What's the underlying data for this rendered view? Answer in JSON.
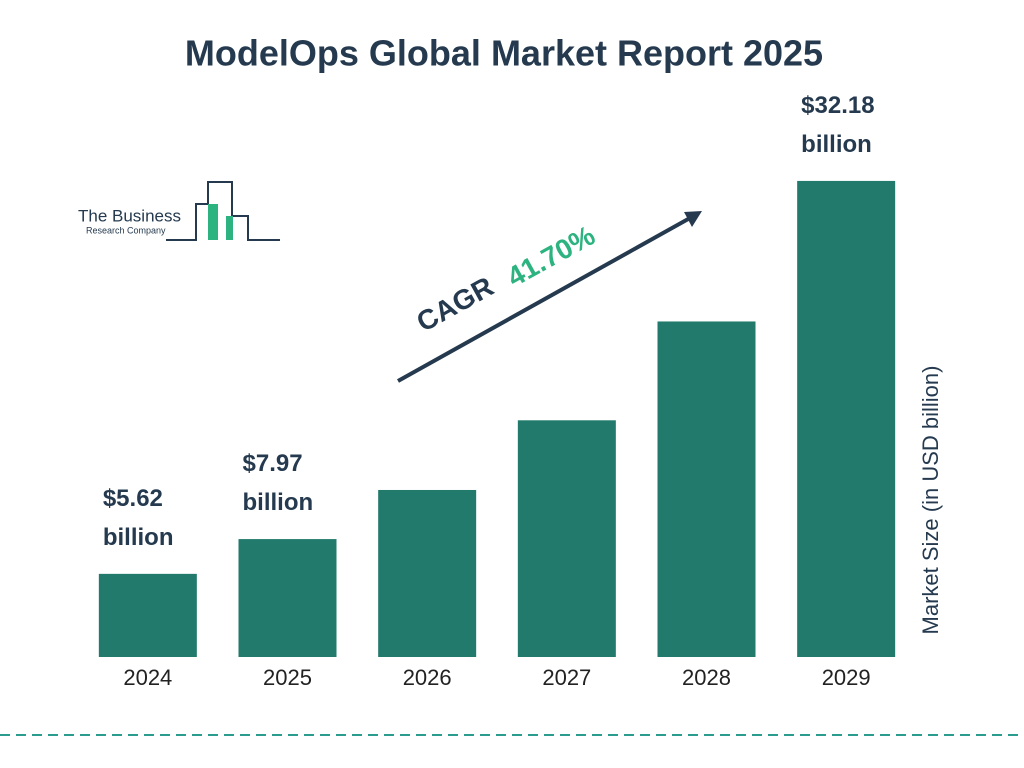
{
  "chart_data": {
    "type": "bar",
    "title": "ModelOps Global Market Report 2025",
    "categories": [
      "2024",
      "2025",
      "2026",
      "2027",
      "2028",
      "2029"
    ],
    "values": [
      5.62,
      7.97,
      11.29,
      16.0,
      22.68,
      32.18
    ],
    "value_labels": [
      "$5.62 billion",
      "$7.97 billion",
      null,
      null,
      null,
      "$32.18 billion"
    ],
    "color": "#217a6b",
    "ylim": [
      0,
      34
    ],
    "y_label": "Market Size (in USD billion)",
    "annotations": {
      "cagr_label": "CAGR",
      "cagr_value": "41.70%"
    },
    "logo": {
      "line1": "The Business",
      "line2": "Research Company"
    }
  }
}
